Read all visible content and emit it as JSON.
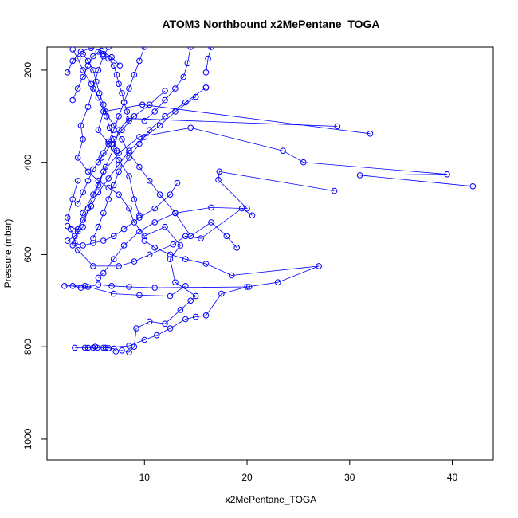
{
  "chart_data": {
    "type": "line",
    "title": "ATOM3 Northbound x2MePentane_TOGA",
    "xlabel": "x2MePentane_TOGA",
    "ylabel": "Pressure (mbar)",
    "xlim": [
      0.5,
      44
    ],
    "ylim": [
      1045,
      150
    ],
    "x_ticks": [
      10,
      20,
      30,
      40
    ],
    "y_ticks": [
      200,
      400,
      600,
      800,
      1000
    ],
    "grid": false,
    "color": "#0000ff",
    "series": [
      {
        "points": [
          [
            3.2,
            802
          ],
          [
            4.5,
            802
          ],
          [
            5.0,
            802
          ],
          [
            5.4,
            802
          ],
          [
            6.0,
            802
          ],
          [
            6.5,
            803
          ],
          [
            7.0,
            804
          ],
          [
            7.2,
            810
          ],
          [
            7.8,
            808
          ],
          [
            8.5,
            812
          ],
          [
            9.0,
            800
          ],
          [
            9.2,
            760
          ],
          [
            10.5,
            745
          ],
          [
            12.0,
            750
          ],
          [
            13.5,
            720
          ],
          [
            14.5,
            700
          ],
          [
            15.0,
            690
          ],
          [
            13.0,
            660
          ],
          [
            12.5,
            610
          ],
          [
            13.5,
            580
          ],
          [
            12.0,
            540
          ],
          [
            10.0,
            560
          ],
          [
            9.0,
            530
          ],
          [
            8.5,
            500
          ],
          [
            7.5,
            470
          ],
          [
            6.5,
            455
          ],
          [
            5.5,
            440
          ],
          [
            4.5,
            420
          ],
          [
            3.5,
            390
          ],
          [
            4.0,
            350
          ],
          [
            3.8,
            320
          ],
          [
            4.5,
            280
          ],
          [
            5.0,
            240
          ],
          [
            5.5,
            200
          ],
          [
            6.0,
            170
          ],
          [
            6.5,
            150
          ]
        ]
      },
      {
        "points": [
          [
            4.2,
            802
          ],
          [
            5.2,
            800
          ],
          [
            6.2,
            802
          ],
          [
            8.5,
            798
          ],
          [
            10.0,
            785
          ],
          [
            11.2,
            775
          ],
          [
            12.5,
            760
          ],
          [
            14.0,
            740
          ],
          [
            15.0,
            735
          ],
          [
            16.0,
            732
          ],
          [
            17.5,
            685
          ],
          [
            20.0,
            670
          ],
          [
            23.0,
            660
          ],
          [
            27.0,
            625
          ],
          [
            18.5,
            645
          ],
          [
            16.0,
            620
          ],
          [
            14.0,
            610
          ],
          [
            12.5,
            600
          ],
          [
            11.0,
            585
          ],
          [
            10.0,
            570
          ]
        ]
      },
      {
        "points": [
          [
            42.0,
            452
          ],
          [
            31.0,
            428
          ],
          [
            39.5,
            426
          ],
          [
            25.5,
            400
          ],
          [
            23.5,
            375
          ],
          [
            14.5,
            325
          ],
          [
            9.5,
            345
          ],
          [
            7.5,
            380
          ],
          [
            6.0,
            420
          ],
          [
            5.0,
            470
          ],
          [
            4.0,
            510
          ],
          [
            3.5,
            550
          ],
          [
            3.0,
            580
          ]
        ]
      },
      {
        "points": [
          [
            32.0,
            338
          ],
          [
            9.8,
            275
          ],
          [
            6.0,
            290
          ],
          [
            5.5,
            330
          ],
          [
            6.5,
            360
          ],
          [
            7.5,
            395
          ],
          [
            8.5,
            430
          ],
          [
            9.0,
            480
          ],
          [
            9.5,
            515
          ]
        ]
      },
      {
        "points": [
          [
            28.8,
            322
          ],
          [
            8.5,
            305
          ],
          [
            7.5,
            330
          ],
          [
            7.0,
            370
          ],
          [
            6.2,
            410
          ],
          [
            5.5,
            450
          ],
          [
            4.5,
            500
          ],
          [
            4.0,
            540
          ],
          [
            3.2,
            560
          ],
          [
            2.5,
            570
          ]
        ]
      },
      {
        "points": [
          [
            28.5,
            462
          ],
          [
            17.3,
            420
          ],
          [
            17.2,
            438
          ],
          [
            20.0,
            500
          ],
          [
            16.5,
            498
          ],
          [
            13.0,
            510
          ],
          [
            11.0,
            530
          ],
          [
            9.5,
            550
          ],
          [
            8.0,
            580
          ],
          [
            7.0,
            610
          ],
          [
            6.0,
            640
          ],
          [
            5.5,
            650
          ]
        ]
      },
      {
        "points": [
          [
            20.5,
            515
          ],
          [
            19.5,
            500
          ],
          [
            15.5,
            565
          ],
          [
            14.0,
            560
          ],
          [
            12.8,
            578
          ],
          [
            10.5,
            600
          ],
          [
            9.0,
            615
          ],
          [
            7.5,
            625
          ],
          [
            5.0,
            625
          ],
          [
            3.5,
            590
          ],
          [
            2.8,
            545
          ],
          [
            2.5,
            520
          ],
          [
            3.0,
            480
          ],
          [
            3.5,
            440
          ]
        ]
      },
      {
        "points": [
          [
            20.2,
            670
          ],
          [
            11.0,
            672
          ],
          [
            8.5,
            670
          ],
          [
            6.8,
            668
          ],
          [
            5.5,
            665
          ],
          [
            4.5,
            670
          ],
          [
            3.8,
            672
          ],
          [
            3.0,
            668
          ],
          [
            2.2,
            668
          ],
          [
            4.2,
            668
          ],
          [
            7.0,
            685
          ],
          [
            9.5,
            688
          ],
          [
            12.5,
            690
          ],
          [
            14.0,
            668
          ]
        ]
      },
      {
        "points": [
          [
            19.0,
            585
          ],
          [
            18.0,
            560
          ],
          [
            16.5,
            530
          ],
          [
            14.5,
            560
          ],
          [
            13.0,
            510
          ],
          [
            11.5,
            470
          ],
          [
            10.5,
            440
          ],
          [
            9.5,
            410
          ],
          [
            8.5,
            380
          ],
          [
            7.8,
            350
          ],
          [
            7.0,
            320
          ],
          [
            6.2,
            290
          ],
          [
            5.5,
            260
          ],
          [
            4.8,
            230
          ],
          [
            4.0,
            200
          ],
          [
            3.5,
            175
          ],
          [
            3.0,
            155
          ]
        ]
      },
      {
        "points": [
          [
            16.0,
            238
          ],
          [
            14.0,
            270
          ],
          [
            12.0,
            300
          ],
          [
            10.5,
            330
          ],
          [
            9.5,
            360
          ],
          [
            8.5,
            390
          ],
          [
            7.5,
            420
          ],
          [
            7.0,
            450
          ],
          [
            6.5,
            480
          ],
          [
            6.0,
            510
          ],
          [
            5.5,
            540
          ],
          [
            5.0,
            565
          ]
        ]
      },
      {
        "points": [
          [
            15.0,
            258
          ],
          [
            13.0,
            290
          ],
          [
            11.5,
            320
          ],
          [
            10.0,
            345
          ],
          [
            8.5,
            375
          ],
          [
            7.5,
            405
          ],
          [
            6.5,
            435
          ],
          [
            5.5,
            465
          ],
          [
            4.8,
            495
          ],
          [
            4.0,
            525
          ],
          [
            3.5,
            545
          ],
          [
            2.5,
            538
          ]
        ]
      },
      {
        "points": [
          [
            12.0,
            245
          ],
          [
            10.5,
            275
          ],
          [
            9.0,
            300
          ],
          [
            7.8,
            330
          ],
          [
            6.8,
            360
          ],
          [
            5.8,
            390
          ],
          [
            5.0,
            415
          ],
          [
            4.5,
            440
          ],
          [
            4.0,
            465
          ],
          [
            3.5,
            490
          ]
        ]
      },
      {
        "points": [
          [
            13.2,
            445
          ],
          [
            12.5,
            470
          ],
          [
            11.0,
            500
          ],
          [
            9.5,
            520
          ],
          [
            8.0,
            545
          ],
          [
            7.0,
            560
          ],
          [
            6.0,
            570
          ],
          [
            5.0,
            575
          ],
          [
            4.0,
            580
          ],
          [
            3.2,
            575
          ]
        ]
      },
      {
        "points": [
          [
            10.0,
            150
          ],
          [
            9.5,
            180
          ],
          [
            9.0,
            210
          ],
          [
            8.5,
            240
          ],
          [
            8.0,
            270
          ],
          [
            7.5,
            300
          ],
          [
            7.0,
            330
          ],
          [
            6.5,
            355
          ],
          [
            6.0,
            380
          ],
          [
            5.5,
            400
          ]
        ]
      },
      {
        "points": [
          [
            14.5,
            150
          ],
          [
            14.2,
            185
          ],
          [
            13.8,
            215
          ],
          [
            13.0,
            240
          ],
          [
            12.0,
            265
          ],
          [
            11.0,
            290
          ],
          [
            10.0,
            310
          ]
        ]
      },
      {
        "points": [
          [
            16.5,
            150
          ],
          [
            16.2,
            175
          ],
          [
            16.0,
            205
          ],
          [
            16.0,
            238
          ]
        ]
      },
      {
        "points": [
          [
            3.0,
            265
          ],
          [
            3.5,
            240
          ],
          [
            4.0,
            215
          ],
          [
            4.5,
            190
          ],
          [
            5.0,
            170
          ],
          [
            5.5,
            160
          ],
          [
            6.0,
            165
          ],
          [
            6.5,
            175
          ],
          [
            7.0,
            190
          ],
          [
            7.3,
            210
          ],
          [
            7.5,
            230
          ],
          [
            7.8,
            250
          ],
          [
            8.0,
            270
          ],
          [
            8.3,
            290
          ],
          [
            8.5,
            310
          ]
        ]
      },
      {
        "points": [
          [
            4.0,
            165
          ],
          [
            4.5,
            180
          ],
          [
            5.0,
            200
          ],
          [
            5.3,
            225
          ],
          [
            5.6,
            250
          ],
          [
            6.0,
            275
          ],
          [
            6.3,
            300
          ],
          [
            6.6,
            325
          ],
          [
            7.0,
            350
          ],
          [
            7.3,
            375
          ]
        ]
      },
      {
        "points": [
          [
            2.5,
            205
          ],
          [
            3.0,
            180
          ],
          [
            3.8,
            160
          ],
          [
            4.8,
            152
          ],
          [
            5.8,
            158
          ],
          [
            6.8,
            172
          ],
          [
            7.6,
            190
          ]
        ]
      }
    ]
  }
}
